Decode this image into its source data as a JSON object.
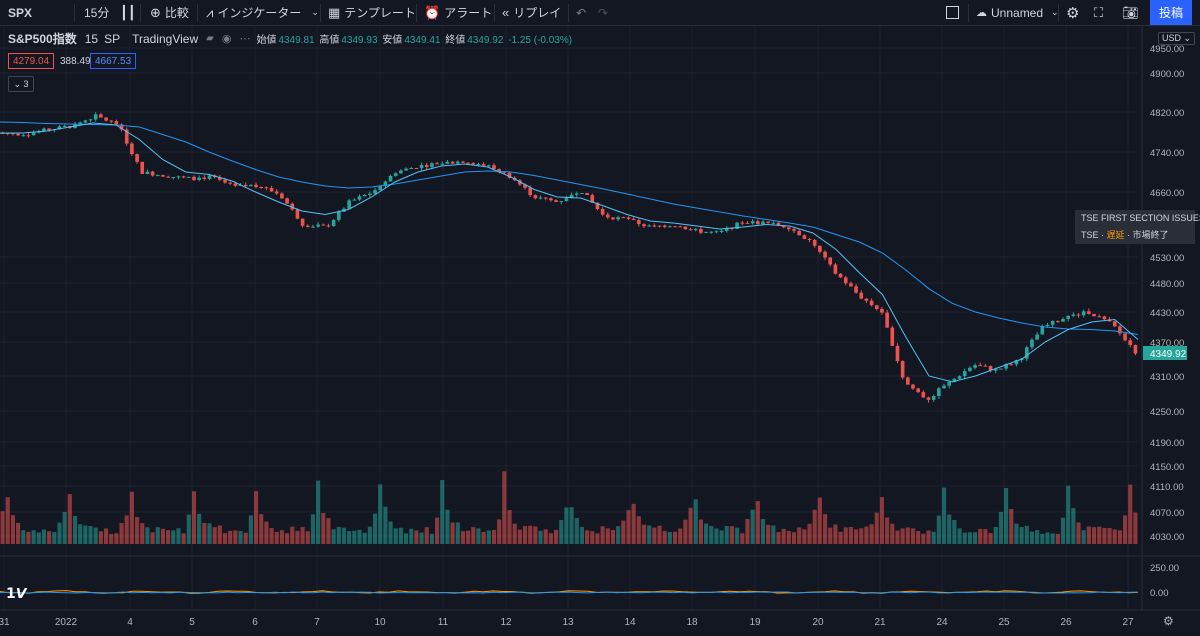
{
  "toolbar": {
    "symbol": "SPX",
    "interval": "15分",
    "compare": "比較",
    "indicators": "インジケーター",
    "templates": "テンプレート",
    "alert": "アラート",
    "replay": "リプレイ",
    "layout_name": "Unnamed",
    "publish": "投稿"
  },
  "legend": {
    "title": "S&P500指数",
    "interval": "15",
    "exchange": "SP",
    "source": "TradingView",
    "open_label": "始値",
    "open": "4349.81",
    "high_label": "高値",
    "high": "4349.93",
    "low_label": "安値",
    "low": "4349.41",
    "close_label": "終値",
    "close": "4349.92",
    "change": "-1.25 (-0.03%)",
    "box1": "4279.04",
    "box2": "388.49",
    "box3": "4667.53",
    "collapsed_count": "3"
  },
  "tse": {
    "line1": "TSE FIRST SECTION ISSUES",
    "line2_a": "TSE",
    "line2_b": "遅延",
    "line2_c": "市場終了"
  },
  "price_axis": {
    "currency": "USD",
    "ticks": [
      "4950.00",
      "4900.00",
      "4820.00",
      "4740.00",
      "4660.00",
      "4530.00",
      "4480.00",
      "4430.00",
      "4370.00",
      "4310.00",
      "4250.00",
      "4190.00",
      "4150.00",
      "4110.00",
      "4070.00",
      "4030.00"
    ],
    "current": "4349.92"
  },
  "indicator_axis": {
    "ticks": [
      "250.00",
      "0.00"
    ]
  },
  "time_axis": {
    "labels": [
      "31",
      "2022",
      "4",
      "5",
      "6",
      "7",
      "10",
      "11",
      "12",
      "13",
      "14",
      "18",
      "19",
      "20",
      "21",
      "24",
      "25",
      "26",
      "27"
    ]
  },
  "colors": {
    "up": "#26a69a",
    "down": "#ef5350",
    "ma": "#2196f3",
    "bg": "#131722",
    "grid": "#1e222d",
    "accent": "#2962ff"
  },
  "chart_data": {
    "type": "candlestick",
    "title": "S&P500指数",
    "x": [
      "31",
      "2022",
      "4",
      "5",
      "6",
      "7",
      "10",
      "11",
      "12",
      "13",
      "14",
      "18",
      "19",
      "20",
      "21",
      "24",
      "25",
      "26",
      "27"
    ],
    "close_path": [
      4778,
      4776,
      4785,
      4792,
      4812,
      4795,
      4700,
      4693,
      4687,
      4690,
      4670,
      4674,
      4655,
      4595,
      4590,
      4640,
      4660,
      4700,
      4712,
      4718,
      4722,
      4712,
      4690,
      4650,
      4640,
      4665,
      4612,
      4605,
      4590,
      4595,
      4582,
      4578,
      4600,
      4598,
      4590,
      4560,
      4500,
      4460,
      4430,
      4300,
      4270,
      4300,
      4330,
      4320,
      4340,
      4400,
      4420,
      4430,
      4405,
      4349.92
    ],
    "ma_fast": [
      4778,
      4778,
      4782,
      4790,
      4798,
      4794,
      4765,
      4725,
      4700,
      4695,
      4682,
      4660,
      4640,
      4622,
      4615,
      4625,
      4650,
      4680,
      4700,
      4712,
      4716,
      4710,
      4690,
      4665,
      4650,
      4648,
      4632,
      4615,
      4602,
      4598,
      4592,
      4586,
      4590,
      4595,
      4592,
      4578,
      4545,
      4500,
      4460,
      4380,
      4310,
      4300,
      4310,
      4325,
      4340,
      4370,
      4395,
      4410,
      4415,
      4375
    ],
    "ma_slow": [
      4800,
      4799,
      4797,
      4796,
      4795,
      4794,
      4790,
      4775,
      4760,
      4740,
      4722,
      4705,
      4690,
      4680,
      4672,
      4668,
      4670,
      4676,
      4684,
      4692,
      4700,
      4702,
      4700,
      4693,
      4684,
      4675,
      4666,
      4656,
      4646,
      4636,
      4628,
      4620,
      4612,
      4605,
      4598,
      4590,
      4575,
      4560,
      4538,
      4505,
      4470,
      4445,
      4430,
      4418,
      4408,
      4400,
      4396,
      4395,
      4392,
      4385
    ],
    "y_range": [
      4000,
      4975
    ],
    "indicator_ticks": [
      250,
      0
    ]
  }
}
